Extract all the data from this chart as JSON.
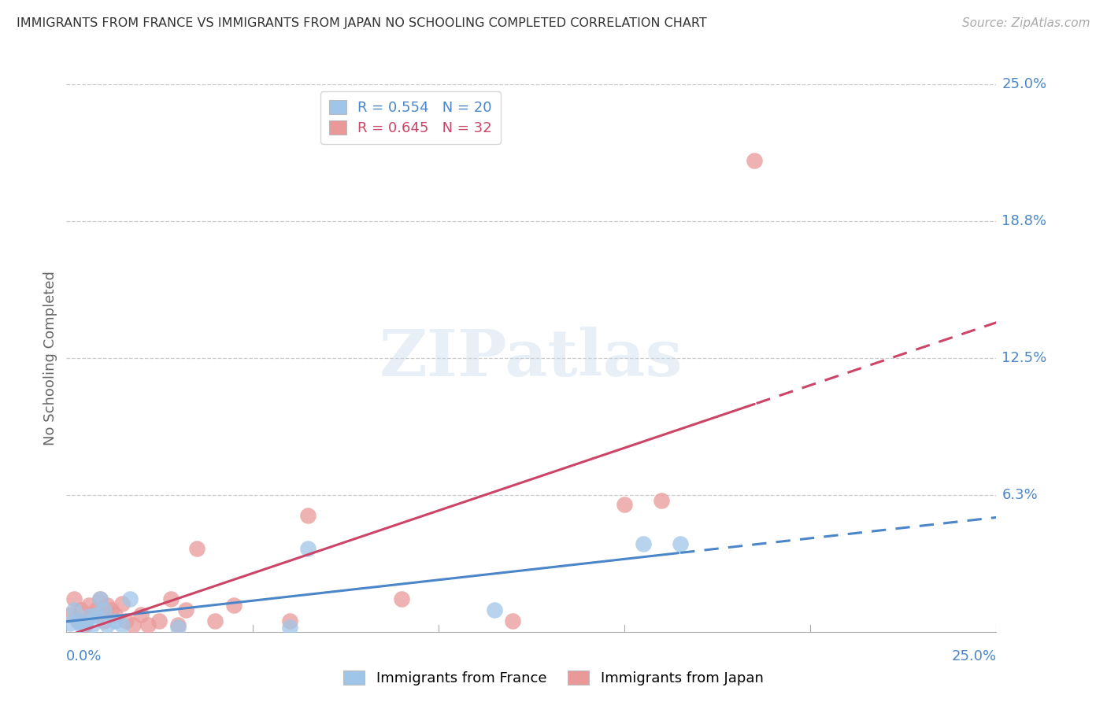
{
  "title": "IMMIGRANTS FROM FRANCE VS IMMIGRANTS FROM JAPAN NO SCHOOLING COMPLETED CORRELATION CHART",
  "source": "Source: ZipAtlas.com",
  "ylabel": "No Schooling Completed",
  "xlim": [
    0,
    0.25
  ],
  "ylim": [
    0,
    0.25
  ],
  "france_R": 0.554,
  "france_N": 20,
  "japan_R": 0.645,
  "japan_N": 32,
  "france_color": "#9fc5e8",
  "japan_color": "#ea9999",
  "france_line_color": "#4a86c8",
  "japan_line_color": "#cc4466",
  "france_x": [
    0.001,
    0.002,
    0.003,
    0.004,
    0.005,
    0.006,
    0.007,
    0.008,
    0.009,
    0.01,
    0.011,
    0.013,
    0.015,
    0.017,
    0.03,
    0.06,
    0.065,
    0.115,
    0.155,
    0.165
  ],
  "france_y": [
    0.004,
    0.01,
    0.005,
    0.003,
    0.004,
    0.007,
    0.003,
    0.008,
    0.015,
    0.01,
    0.003,
    0.005,
    0.003,
    0.015,
    0.002,
    0.002,
    0.038,
    0.01,
    0.04,
    0.04
  ],
  "japan_x": [
    0.001,
    0.002,
    0.003,
    0.004,
    0.005,
    0.006,
    0.007,
    0.008,
    0.009,
    0.01,
    0.011,
    0.012,
    0.013,
    0.015,
    0.016,
    0.018,
    0.02,
    0.022,
    0.025,
    0.028,
    0.03,
    0.032,
    0.035,
    0.04,
    0.045,
    0.06,
    0.065,
    0.09,
    0.12,
    0.15,
    0.16,
    0.185
  ],
  "japan_y": [
    0.008,
    0.015,
    0.005,
    0.01,
    0.003,
    0.012,
    0.008,
    0.01,
    0.015,
    0.005,
    0.012,
    0.01,
    0.008,
    0.013,
    0.005,
    0.003,
    0.008,
    0.003,
    0.005,
    0.015,
    0.003,
    0.01,
    0.038,
    0.005,
    0.012,
    0.005,
    0.053,
    0.015,
    0.005,
    0.058,
    0.06,
    0.215
  ],
  "ytick_vals": [
    0.0625,
    0.125,
    0.1875,
    0.25
  ],
  "ytick_labs": [
    "6.3%",
    "12.5%",
    "18.8%",
    "25.0%"
  ]
}
